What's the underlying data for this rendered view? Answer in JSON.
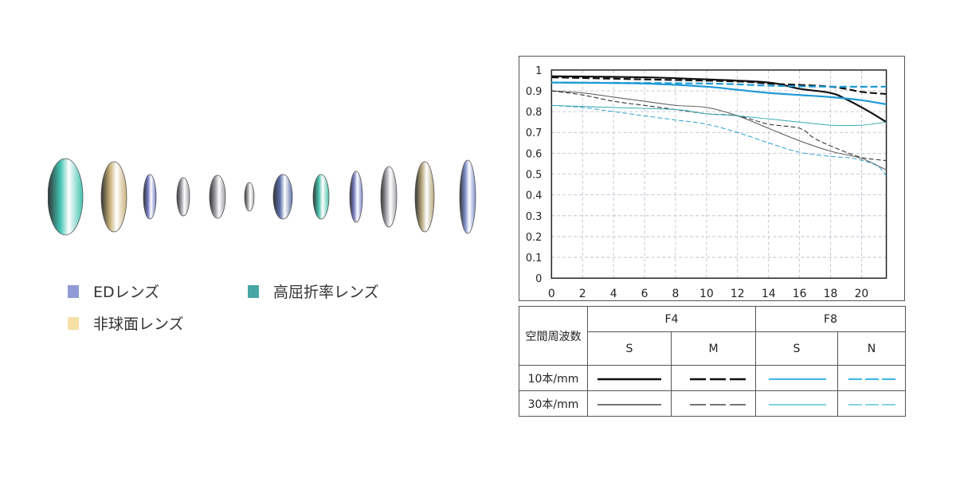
{
  "legend": [
    {
      "label": "EDレンズ",
      "color": "#8e9bd6"
    },
    {
      "label": "高屈折率レンズ",
      "color": "#46a7a5"
    },
    {
      "label": "非球面レンズ",
      "color": "#f6e0a6"
    }
  ],
  "lens_elements": [
    {
      "color": "#3fc1b0"
    },
    {
      "color": "#c9b27a"
    },
    {
      "color": "#6f78c2"
    },
    {
      "color": "#a0a0a8"
    },
    {
      "color": "#9a9aa2"
    },
    {
      "color": "#a8a8ae"
    },
    {
      "color": "#5a6fa8"
    },
    {
      "color": "#48c0aa"
    },
    {
      "color": "#7c83c8"
    },
    {
      "color": "#a5a5ac"
    },
    {
      "color": "#b5a57a"
    },
    {
      "color": "#8090cc"
    }
  ],
  "chart_data": {
    "type": "line",
    "xlim": [
      0,
      21.6
    ],
    "ylim": [
      0,
      1
    ],
    "xticks": [
      "0",
      "2",
      "4",
      "6",
      "8",
      "10",
      "12",
      "14",
      "16",
      "18",
      "20"
    ],
    "yticks": [
      "0",
      "0.1",
      "0.2",
      "0.3",
      "0.4",
      "0.5",
      "0.6",
      "0.7",
      "0.8",
      "0.9",
      "1"
    ],
    "grid": true,
    "series": [
      {
        "key": "F4-S-10",
        "color": "#111111",
        "dash": false,
        "weight": "thick",
        "x": [
          0,
          6,
          10,
          14,
          16,
          18,
          19,
          20.5,
          21.6
        ],
        "y": [
          0.97,
          0.965,
          0.955,
          0.94,
          0.91,
          0.89,
          0.86,
          0.8,
          0.75
        ]
      },
      {
        "key": "F4-M-10",
        "color": "#111111",
        "dash": true,
        "weight": "thick",
        "x": [
          0,
          6,
          12,
          14,
          18,
          20,
          21.6
        ],
        "y": [
          0.965,
          0.955,
          0.945,
          0.935,
          0.92,
          0.895,
          0.885
        ]
      },
      {
        "key": "F8-S-10",
        "color": "#1e9ad6",
        "dash": false,
        "weight": "thick",
        "x": [
          0,
          6,
          10,
          12,
          14,
          16,
          18,
          20,
          21.6
        ],
        "y": [
          0.94,
          0.935,
          0.92,
          0.905,
          0.89,
          0.88,
          0.87,
          0.855,
          0.835
        ]
      },
      {
        "key": "F8-N-10",
        "color": "#1e9ad6",
        "dash": true,
        "weight": "thick",
        "x": [
          0,
          10,
          14,
          18,
          21.6
        ],
        "y": [
          0.94,
          0.935,
          0.925,
          0.92,
          0.92
        ]
      },
      {
        "key": "F4-S-30",
        "color": "#555555",
        "dash": false,
        "weight": "thin",
        "x": [
          0,
          2,
          4,
          6,
          8,
          10,
          12,
          14,
          16,
          18,
          20,
          21.6
        ],
        "y": [
          0.9,
          0.89,
          0.87,
          0.85,
          0.83,
          0.82,
          0.78,
          0.72,
          0.66,
          0.61,
          0.575,
          0.52
        ]
      },
      {
        "key": "F4-M-30",
        "color": "#222222",
        "dash": true,
        "weight": "thin",
        "x": [
          0,
          2,
          4,
          6,
          8,
          10,
          12,
          14,
          16,
          17,
          18.5,
          20,
          21.6
        ],
        "y": [
          0.9,
          0.88,
          0.85,
          0.83,
          0.81,
          0.79,
          0.78,
          0.74,
          0.72,
          0.67,
          0.62,
          0.58,
          0.565
        ]
      },
      {
        "key": "F8-S-30",
        "color": "#3aaab0",
        "dash": false,
        "weight": "thin",
        "x": [
          0,
          4,
          8,
          10,
          12,
          14,
          16,
          18,
          20,
          21.6
        ],
        "y": [
          0.83,
          0.82,
          0.81,
          0.79,
          0.78,
          0.765,
          0.75,
          0.735,
          0.735,
          0.75
        ]
      },
      {
        "key": "F8-N-30",
        "color": "#2aa0d0",
        "dash": true,
        "weight": "thin",
        "x": [
          0,
          2,
          4,
          6,
          8,
          10,
          12,
          14,
          16,
          18,
          19.5,
          21,
          21.6
        ],
        "y": [
          0.83,
          0.82,
          0.8,
          0.78,
          0.76,
          0.74,
          0.7,
          0.65,
          0.605,
          0.585,
          0.575,
          0.54,
          0.49
        ]
      }
    ]
  },
  "table": {
    "header_label": "空間周波数",
    "groups": [
      "F4",
      "F8"
    ],
    "columns": [
      "S",
      "M",
      "S",
      "N"
    ],
    "rows": [
      "10本/mm",
      "30本/mm"
    ]
  }
}
